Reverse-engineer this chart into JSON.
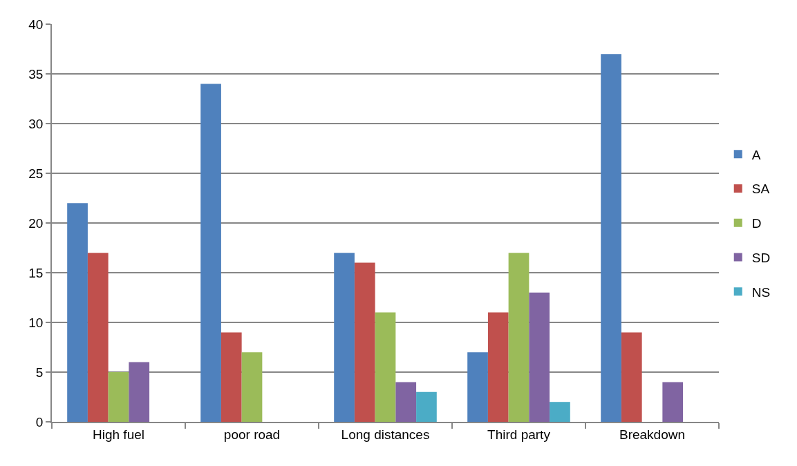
{
  "chart_data": {
    "type": "bar",
    "categories": [
      "High fuel",
      "poor road",
      "Long distances",
      "Third party",
      "Breakdown"
    ],
    "series": [
      {
        "name": "A",
        "color": "#4f81bd",
        "values": [
          22,
          34,
          17,
          7,
          37
        ]
      },
      {
        "name": "SA",
        "color": "#c0504d",
        "values": [
          17,
          9,
          16,
          11,
          9
        ]
      },
      {
        "name": "D",
        "color": "#9bbb59",
        "values": [
          5,
          7,
          11,
          17,
          null
        ]
      },
      {
        "name": "SD",
        "color": "#8064a2",
        "values": [
          6,
          null,
          4,
          13,
          4
        ]
      },
      {
        "name": "NS",
        "color": "#4bacc6",
        "values": [
          null,
          null,
          3,
          2,
          null
        ]
      }
    ],
    "ylim": [
      0,
      40
    ],
    "yticks": [
      0,
      5,
      10,
      15,
      20,
      25,
      30,
      35,
      40
    ],
    "grid": "y",
    "legend": "right"
  }
}
